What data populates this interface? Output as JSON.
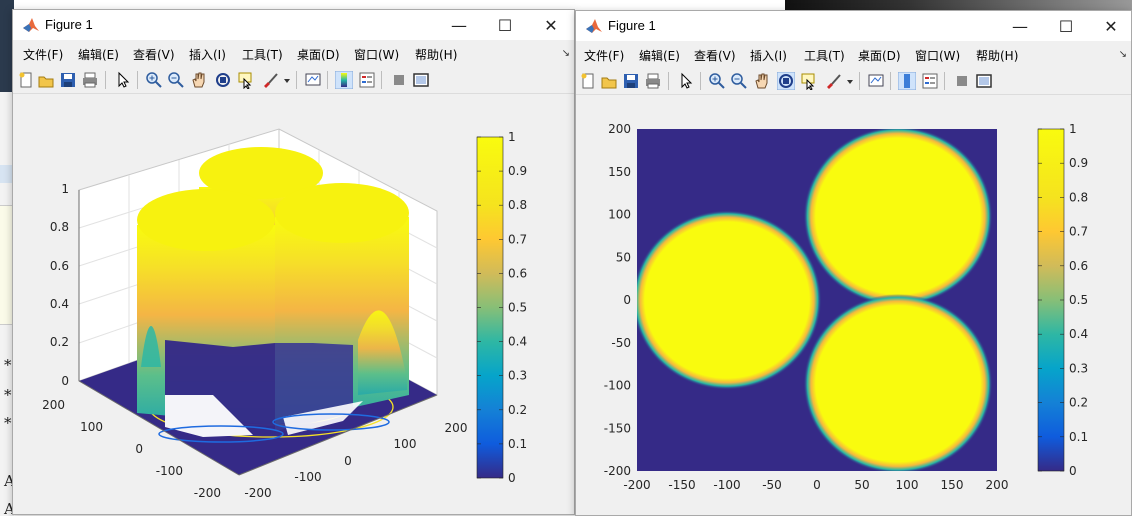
{
  "windows": [
    {
      "title": "Figure 1",
      "menu": [
        "文件(F)",
        "编辑(E)",
        "查看(V)",
        "插入(I)",
        "工具(T)",
        "桌面(D)",
        "窗口(W)",
        "帮助(H)"
      ],
      "controls": {
        "minimize": "—",
        "maximize": "☐",
        "close": "✕"
      }
    },
    {
      "title": "Figure 1",
      "menu": [
        "文件(F)",
        "编辑(E)",
        "查看(V)",
        "插入(I)",
        "工具(T)",
        "桌面(D)",
        "窗口(W)",
        "帮助(H)"
      ],
      "controls": {
        "minimize": "—",
        "maximize": "☐",
        "close": "✕"
      }
    }
  ],
  "toolbar_icons": [
    "new-figure-icon",
    "open-file-icon",
    "save-icon",
    "print-icon",
    "pointer-icon",
    "zoom-in-icon",
    "zoom-out-icon",
    "pan-hand-icon",
    "rotate-3d-icon",
    "data-cursor-icon",
    "brush-icon",
    "dropdown-arrow-icon",
    "link-plot-icon",
    "colorbar-icon",
    "legend-icon",
    "hide-plot-tools-icon",
    "show-plot-tools-icon"
  ],
  "background_text": [
    "*",
    "*",
    "*",
    "A",
    "A"
  ],
  "chart_data": [
    {
      "type": "surface",
      "view": "3d",
      "description_of_data": "three cylinders of value 1 on a 0 background",
      "x_ticks": [
        "-200",
        "-100",
        "0",
        "100",
        "200"
      ],
      "y_ticks": [
        "-200",
        "-100",
        "0",
        "100",
        "200"
      ],
      "z_ticks": [
        "0",
        "0.2",
        "0.4",
        "0.6",
        "0.8",
        "1"
      ],
      "xlim": [
        -200,
        200
      ],
      "ylim": [
        -200,
        200
      ],
      "zlim": [
        0,
        1
      ],
      "circles": [
        {
          "cx": -100,
          "cy": 0,
          "r": 100
        },
        {
          "cx": 90,
          "cy": 90,
          "r": 100
        },
        {
          "cx": 90,
          "cy": -90,
          "r": 100
        }
      ],
      "colorbar": {
        "ticks": [
          "0",
          "0.1",
          "0.2",
          "0.3",
          "0.4",
          "0.5",
          "0.6",
          "0.7",
          "0.8",
          "0.9",
          "1"
        ],
        "range": [
          0,
          1
        ],
        "colormap": "parula"
      },
      "grid": true
    },
    {
      "type": "heatmap",
      "view": "2d",
      "x_ticks": [
        "-200",
        "-150",
        "-100",
        "-50",
        "0",
        "50",
        "100",
        "150",
        "200"
      ],
      "y_ticks": [
        "200",
        "150",
        "100",
        "50",
        "0",
        "-50",
        "-100",
        "-150",
        "-200"
      ],
      "xlim": [
        -200,
        200
      ],
      "ylim": [
        -200,
        200
      ],
      "circles": [
        {
          "cx": -100,
          "cy": 0,
          "r": 105
        },
        {
          "cx": 90,
          "cy": 98,
          "r": 105
        },
        {
          "cx": 90,
          "cy": -98,
          "r": 105
        }
      ],
      "colorbar": {
        "ticks": [
          "0",
          "0.1",
          "0.2",
          "0.3",
          "0.4",
          "0.5",
          "0.6",
          "0.7",
          "0.8",
          "0.9",
          "1"
        ],
        "range": [
          0,
          1
        ],
        "colormap": "parula"
      },
      "colors": {
        "low": "#352a87",
        "high": "#f9fb0e",
        "edge": "#26b8a6",
        "orange": "#f6b83d"
      }
    }
  ]
}
